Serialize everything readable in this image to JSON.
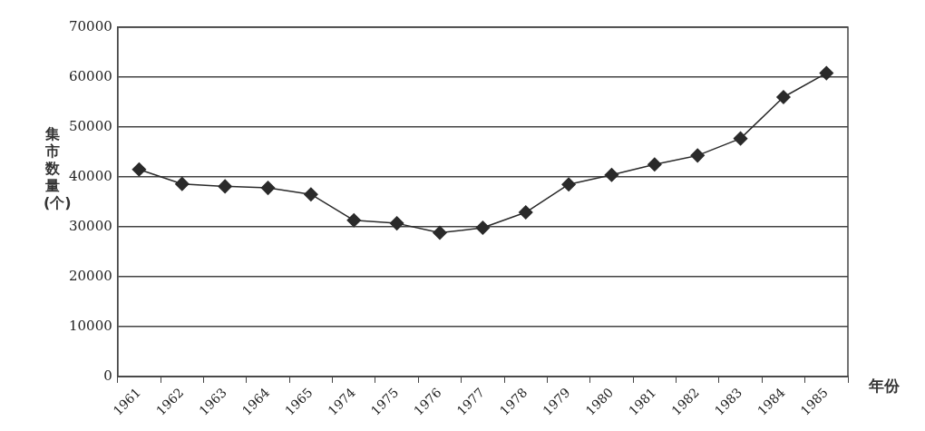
{
  "chart_data": {
    "type": "line",
    "xlabel": "年份",
    "ylabel": "集市数量(个)",
    "categories": [
      "1961",
      "1962",
      "1963",
      "1964",
      "1965",
      "1974",
      "1975",
      "1976",
      "1977",
      "1978",
      "1979",
      "1980",
      "1981",
      "1982",
      "1983",
      "1984",
      "1985"
    ],
    "series": [
      {
        "color": "#2a2a2a",
        "values": [
          41500,
          38600,
          38100,
          37800,
          36500,
          31300,
          30700,
          28800,
          29800,
          32900,
          38500,
          40400,
          42500,
          44300,
          47700,
          56000,
          60800
        ]
      }
    ],
    "ylim": [
      0,
      70000
    ],
    "yticks": [
      0,
      10000,
      20000,
      30000,
      40000,
      50000,
      60000,
      70000
    ],
    "grid": "y",
    "marker": "diamond",
    "line_style": "solid",
    "legend": false
  }
}
